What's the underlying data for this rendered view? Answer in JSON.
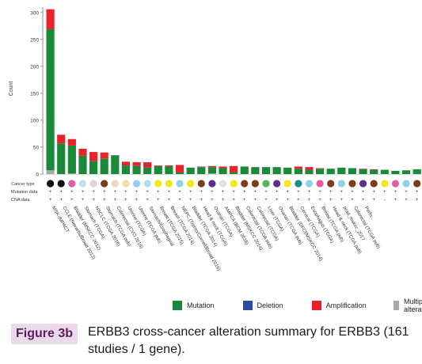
{
  "figure": {
    "label": "Figure 3b",
    "caption": "ERBB3 cross-cancer alteration summary for ERBB3 (161 studies / 1 gene)."
  },
  "legend": [
    {
      "label": "Mutation",
      "color": "#1a8a3a"
    },
    {
      "label": "Deletion",
      "color": "#2c4a9e"
    },
    {
      "label": "Amplification",
      "color": "#e8232a"
    },
    {
      "label": "Multiple alterations",
      "color": "#a8a8a8"
    }
  ],
  "chart_data": {
    "type": "bar",
    "stacked": true,
    "ylabel": "Count",
    "ylim": [
      0,
      310
    ],
    "yticks": [
      0,
      50,
      100,
      150,
      200,
      250,
      300
    ],
    "row_labels": [
      "Cancer type",
      "Mutation data",
      "CNA data"
    ],
    "series": [
      {
        "name": "Mutation",
        "color": "#1a8a3a",
        "values": [
          262,
          57,
          52,
          34,
          24,
          29,
          35,
          16,
          15,
          12,
          15,
          14,
          3,
          12,
          13,
          12,
          11,
          3,
          14,
          13,
          13,
          13,
          12,
          10,
          8,
          10,
          10,
          12,
          11,
          9,
          8,
          8,
          6,
          7,
          9,
          4
        ]
      },
      {
        "name": "Deletion",
        "color": "#2c4a9e",
        "values": [
          0,
          0,
          0,
          0,
          0,
          0,
          0,
          0,
          0,
          0,
          0,
          0,
          0,
          0,
          0,
          0,
          0,
          0,
          0,
          0,
          0,
          0,
          0,
          0,
          0,
          0,
          0,
          0,
          0,
          0,
          0,
          0,
          0,
          0,
          0,
          0
        ]
      },
      {
        "name": "Amplification",
        "color": "#e8232a",
        "values": [
          37,
          16,
          12,
          13,
          17,
          11,
          0,
          7,
          7,
          10,
          1,
          2,
          14,
          0,
          1,
          2,
          3,
          12,
          0,
          0,
          0,
          0,
          0,
          4,
          5,
          1,
          0,
          0,
          0,
          1,
          1,
          0,
          0,
          0,
          0,
          4
        ]
      },
      {
        "name": "Multiple alterations",
        "color": "#a8a8a8",
        "values": [
          7,
          0,
          1,
          0,
          0,
          0,
          0,
          0,
          0,
          0,
          0,
          0,
          0,
          0,
          0,
          1,
          0,
          0,
          0,
          0,
          0,
          0,
          0,
          0,
          0,
          0,
          0,
          0,
          0,
          0,
          0,
          0,
          0,
          0,
          0,
          1
        ]
      }
    ],
    "categories": [
      "MSK-IMPACT",
      "CCLE (Novartis/Broad 2012)",
      "Bladder (MSKCC 2012)",
      "Stomach (TCGA)",
      "NSCLC (TCGA 2016)",
      "Stomach (TCGA pub)",
      "Colorectal (CVO 2016)",
      "Uterine (TCGA)",
      "Uterine (TCGA pub)",
      "Stomach/Esophageal",
      "Breast (TCGA 2015)",
      "Breast (TCGA 2014)",
      "NEPC (Trento/Cornell/Broad 2016)",
      "Bladder (TCGA 2014)",
      "Head & neck (TCGA)",
      "Ovarian (TCGA)",
      "AMPCA (BCM 2016)",
      "Bladder (MSKCC 2014)",
      "Colorectal (TCGA pub)",
      "Colorectal (TCGA)",
      "Liver (TCGA)",
      "Ovarian (TCGA pub)",
      "Bladder (DFCI/MSKCC 2014)",
      "Cervical (TCGA)",
      "Esophagus (TCGA)",
      "Breast (TCGA pub)",
      "Head & neck (TCGA pub)",
      "prad_mskcc_2017",
      "Colorectal (TCGA pub) ",
      "Perfo...",
      "",
      "",
      "",
      "",
      "",
      ""
    ],
    "cancer_type_colors": [
      "#111111",
      "#111111",
      "#e05fa3",
      "#c5dff0",
      "#ead1dc",
      "#7a3e1a",
      "#f0d8c0",
      "#f7d9a6",
      "#8fd0ea",
      "#b3dcf0",
      "#f3e81a",
      "#f3e81a",
      "#8fd0ea",
      "#f3e81a",
      "#7a3e1a",
      "#5b2e8a",
      "#e0e0e0",
      "#f3e81a",
      "#7a3e1a",
      "#7a3e1a",
      "#5ab552",
      "#5b2e8a",
      "#f3e81a",
      "#1a8a8a",
      "#8fd0ea",
      "#e05fa3",
      "#7a3e1a",
      "#8fd0ea",
      "#7a3e1a",
      "#5b2e8a",
      "#7a3e1a",
      "#f3e81a",
      "#e05fa3",
      "#8fd0ea",
      "#7a3e1a",
      "#8fd0ea"
    ],
    "mutation_data": [
      "+",
      "+",
      "+",
      "+",
      "+",
      "+",
      "+",
      "+",
      "+",
      "+",
      "+",
      "+",
      "+",
      "+",
      "+",
      "+",
      "+",
      "+",
      "+",
      "+",
      "+",
      "+",
      "+",
      "+",
      "+",
      "+",
      "+",
      "+",
      "+",
      "+",
      "+",
      "+",
      "+",
      "+",
      "+",
      "+"
    ],
    "cna_data": [
      "+",
      "+",
      "+",
      "+",
      "+",
      "+",
      "+",
      "+",
      "+",
      "+",
      "+",
      "+",
      "+",
      "+",
      "+",
      "+",
      "+",
      "+",
      "+",
      "+",
      "+",
      "+",
      "+",
      "+",
      "+",
      "+",
      "+",
      "+",
      "+",
      "+",
      "+",
      "-",
      "+",
      "+",
      "+",
      "+"
    ]
  }
}
